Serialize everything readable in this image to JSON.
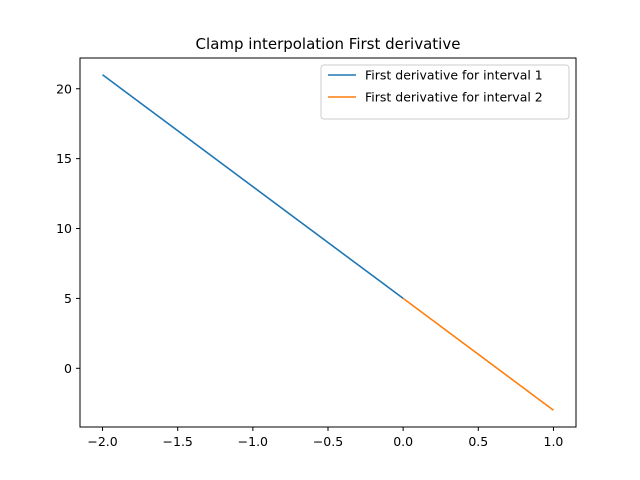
{
  "chart_data": {
    "type": "line",
    "title": "Clamp interpolation First derivative",
    "xlabel": "",
    "ylabel": "",
    "xlim": [
      -2.15,
      1.15
    ],
    "ylim": [
      -4.2,
      22.2
    ],
    "xticks": [
      -2.0,
      -1.5,
      -1.0,
      -0.5,
      0.0,
      0.5,
      1.0
    ],
    "xtick_labels": [
      "−2.0",
      "−1.5",
      "−1.0",
      "−0.5",
      "0.0",
      "0.5",
      "1.0"
    ],
    "yticks": [
      0,
      5,
      10,
      15,
      20
    ],
    "ytick_labels": [
      "0",
      "5",
      "10",
      "15",
      "20"
    ],
    "grid": false,
    "legend_position": "top-right",
    "series": [
      {
        "name": "First derivative for interval 1",
        "color": "#1f77b4",
        "x": [
          -2.0,
          0.0
        ],
        "y": [
          21,
          5
        ]
      },
      {
        "name": "First derivative for interval 2",
        "color": "#ff7f0e",
        "x": [
          0.0,
          1.0
        ],
        "y": [
          5,
          -3
        ]
      }
    ]
  }
}
